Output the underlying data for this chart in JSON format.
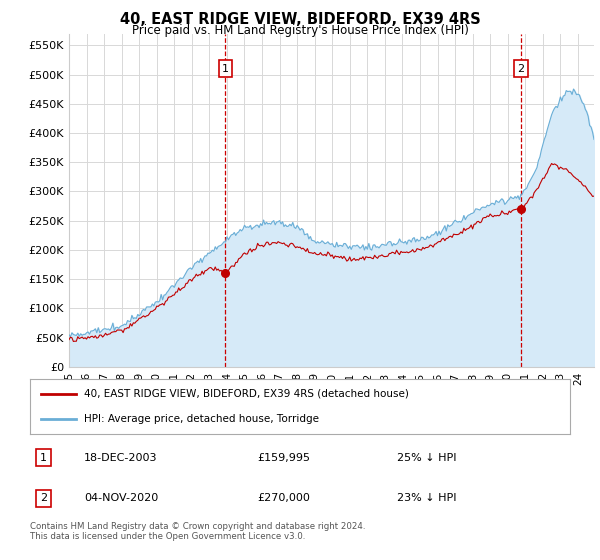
{
  "title": "40, EAST RIDGE VIEW, BIDEFORD, EX39 4RS",
  "subtitle": "Price paid vs. HM Land Registry's House Price Index (HPI)",
  "ylim": [
    0,
    570000
  ],
  "yticks": [
    0,
    50000,
    100000,
    150000,
    200000,
    250000,
    300000,
    350000,
    400000,
    450000,
    500000,
    550000
  ],
  "ytick_labels": [
    "£0",
    "£50K",
    "£100K",
    "£150K",
    "£200K",
    "£250K",
    "£300K",
    "£350K",
    "£400K",
    "£450K",
    "£500K",
    "£550K"
  ],
  "hpi_color": "#6aaed6",
  "hpi_fill_color": "#d6eaf8",
  "price_color": "#c00000",
  "vline_color": "#cc0000",
  "transaction1_idx": 107,
  "transaction2_idx": 309,
  "transaction1": {
    "label": "1",
    "date": "18-DEC-2003",
    "price": "£159,995",
    "note": "25% ↓ HPI"
  },
  "transaction2": {
    "label": "2",
    "date": "04-NOV-2020",
    "price": "£270,000",
    "note": "23% ↓ HPI"
  },
  "legend_red_label": "40, EAST RIDGE VIEW, BIDEFORD, EX39 4RS (detached house)",
  "legend_blue_label": "HPI: Average price, detached house, Torridge",
  "footer": "Contains HM Land Registry data © Crown copyright and database right 2024.\nThis data is licensed under the Open Government Licence v3.0.",
  "background_color": "#ffffff",
  "grid_color": "#d8d8d8",
  "label_box_color": "#cc0000"
}
